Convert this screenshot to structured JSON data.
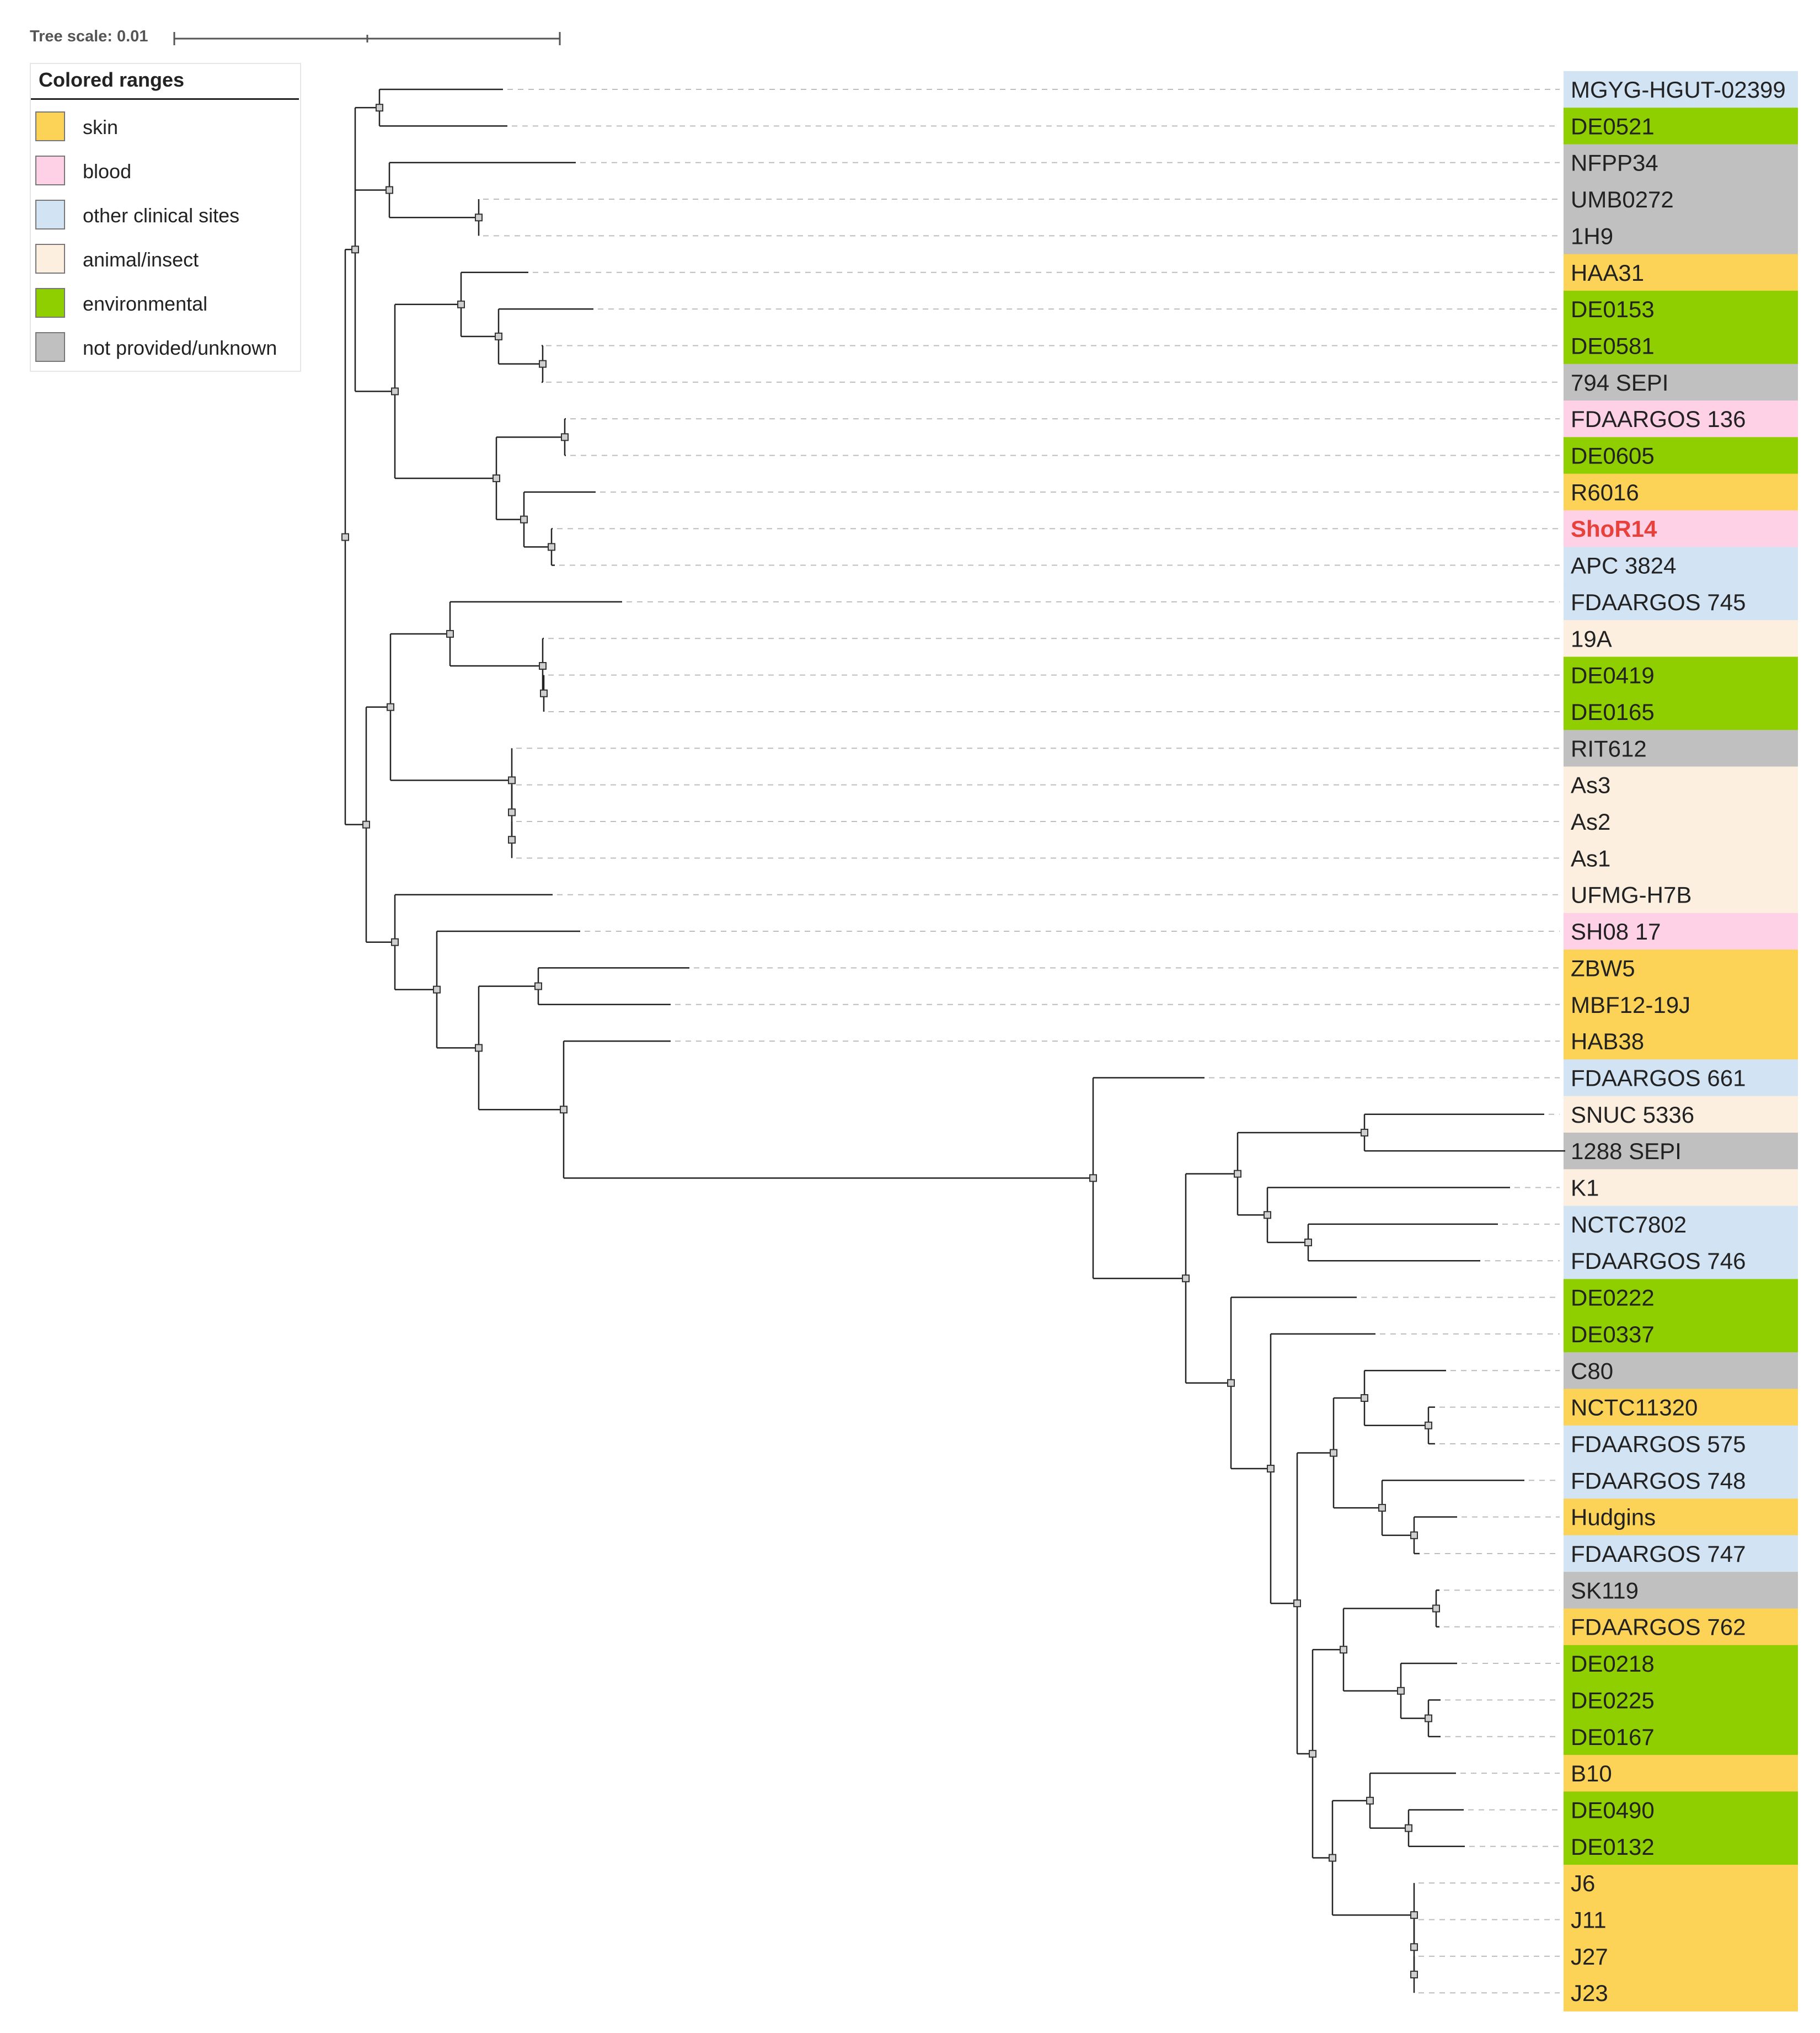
{
  "tree_scale": {
    "label": "Tree scale: 0.01"
  },
  "legend": {
    "title": "Colored ranges",
    "items": [
      {
        "key": "skin",
        "label": "skin",
        "color": "#fcd357"
      },
      {
        "key": "blood",
        "label": "blood",
        "color": "#ffd1e6"
      },
      {
        "key": "other",
        "label": "other clinical sites",
        "color": "#d2e3f3"
      },
      {
        "key": "animal",
        "label": "animal/insect",
        "color": "#fdefe0"
      },
      {
        "key": "env",
        "label": "environmental",
        "color": "#8fcf00"
      },
      {
        "key": "unknown",
        "label": "not provided/unknown",
        "color": "#c0c0c0"
      }
    ]
  },
  "highlight_color": "#e8413c",
  "leaves": [
    {
      "label": "MGYG-HGUT-02399",
      "category": "other"
    },
    {
      "label": "DE0521",
      "category": "env"
    },
    {
      "label": "NFPP34",
      "category": "unknown"
    },
    {
      "label": "UMB0272",
      "category": "unknown"
    },
    {
      "label": "1H9",
      "category": "unknown"
    },
    {
      "label": "HAA31",
      "category": "skin"
    },
    {
      "label": "DE0153",
      "category": "env"
    },
    {
      "label": "DE0581",
      "category": "env"
    },
    {
      "label": "794 SEPI",
      "category": "unknown"
    },
    {
      "label": "FDAARGOS 136",
      "category": "blood"
    },
    {
      "label": "DE0605",
      "category": "env"
    },
    {
      "label": "R6016",
      "category": "skin"
    },
    {
      "label": "ShoR14",
      "category": "blood",
      "highlight": true
    },
    {
      "label": "APC 3824",
      "category": "other"
    },
    {
      "label": "FDAARGOS 745",
      "category": "other"
    },
    {
      "label": "19A",
      "category": "animal"
    },
    {
      "label": "DE0419",
      "category": "env"
    },
    {
      "label": "DE0165",
      "category": "env"
    },
    {
      "label": "RIT612",
      "category": "unknown"
    },
    {
      "label": "As3",
      "category": "animal"
    },
    {
      "label": "As2",
      "category": "animal"
    },
    {
      "label": "As1",
      "category": "animal"
    },
    {
      "label": "UFMG-H7B",
      "category": "animal"
    },
    {
      "label": "SH08 17",
      "category": "blood"
    },
    {
      "label": "ZBW5",
      "category": "skin"
    },
    {
      "label": "MBF12-19J",
      "category": "skin"
    },
    {
      "label": "HAB38",
      "category": "skin"
    },
    {
      "label": "FDAARGOS 661",
      "category": "other"
    },
    {
      "label": "SNUC 5336",
      "category": "animal"
    },
    {
      "label": "1288 SEPI",
      "category": "unknown"
    },
    {
      "label": "K1",
      "category": "animal"
    },
    {
      "label": "NCTC7802",
      "category": "other"
    },
    {
      "label": "FDAARGOS 746",
      "category": "other"
    },
    {
      "label": "DE0222",
      "category": "env"
    },
    {
      "label": "DE0337",
      "category": "env"
    },
    {
      "label": "C80",
      "category": "unknown"
    },
    {
      "label": "NCTC11320",
      "category": "skin"
    },
    {
      "label": "FDAARGOS 575",
      "category": "other"
    },
    {
      "label": "FDAARGOS 748",
      "category": "other"
    },
    {
      "label": "Hudgins",
      "category": "skin"
    },
    {
      "label": "FDAARGOS 747",
      "category": "other"
    },
    {
      "label": "SK119",
      "category": "unknown"
    },
    {
      "label": "FDAARGOS 762",
      "category": "skin"
    },
    {
      "label": "DE0218",
      "category": "env"
    },
    {
      "label": "DE0225",
      "category": "env"
    },
    {
      "label": "DE0167",
      "category": "env"
    },
    {
      "label": "B10",
      "category": "skin"
    },
    {
      "label": "DE0490",
      "category": "env"
    },
    {
      "label": "DE0132",
      "category": "env"
    },
    {
      "label": "J6",
      "category": "skin"
    },
    {
      "label": "J11",
      "category": "skin"
    },
    {
      "label": "J27",
      "category": "skin"
    },
    {
      "label": "J23",
      "category": "skin"
    }
  ]
}
